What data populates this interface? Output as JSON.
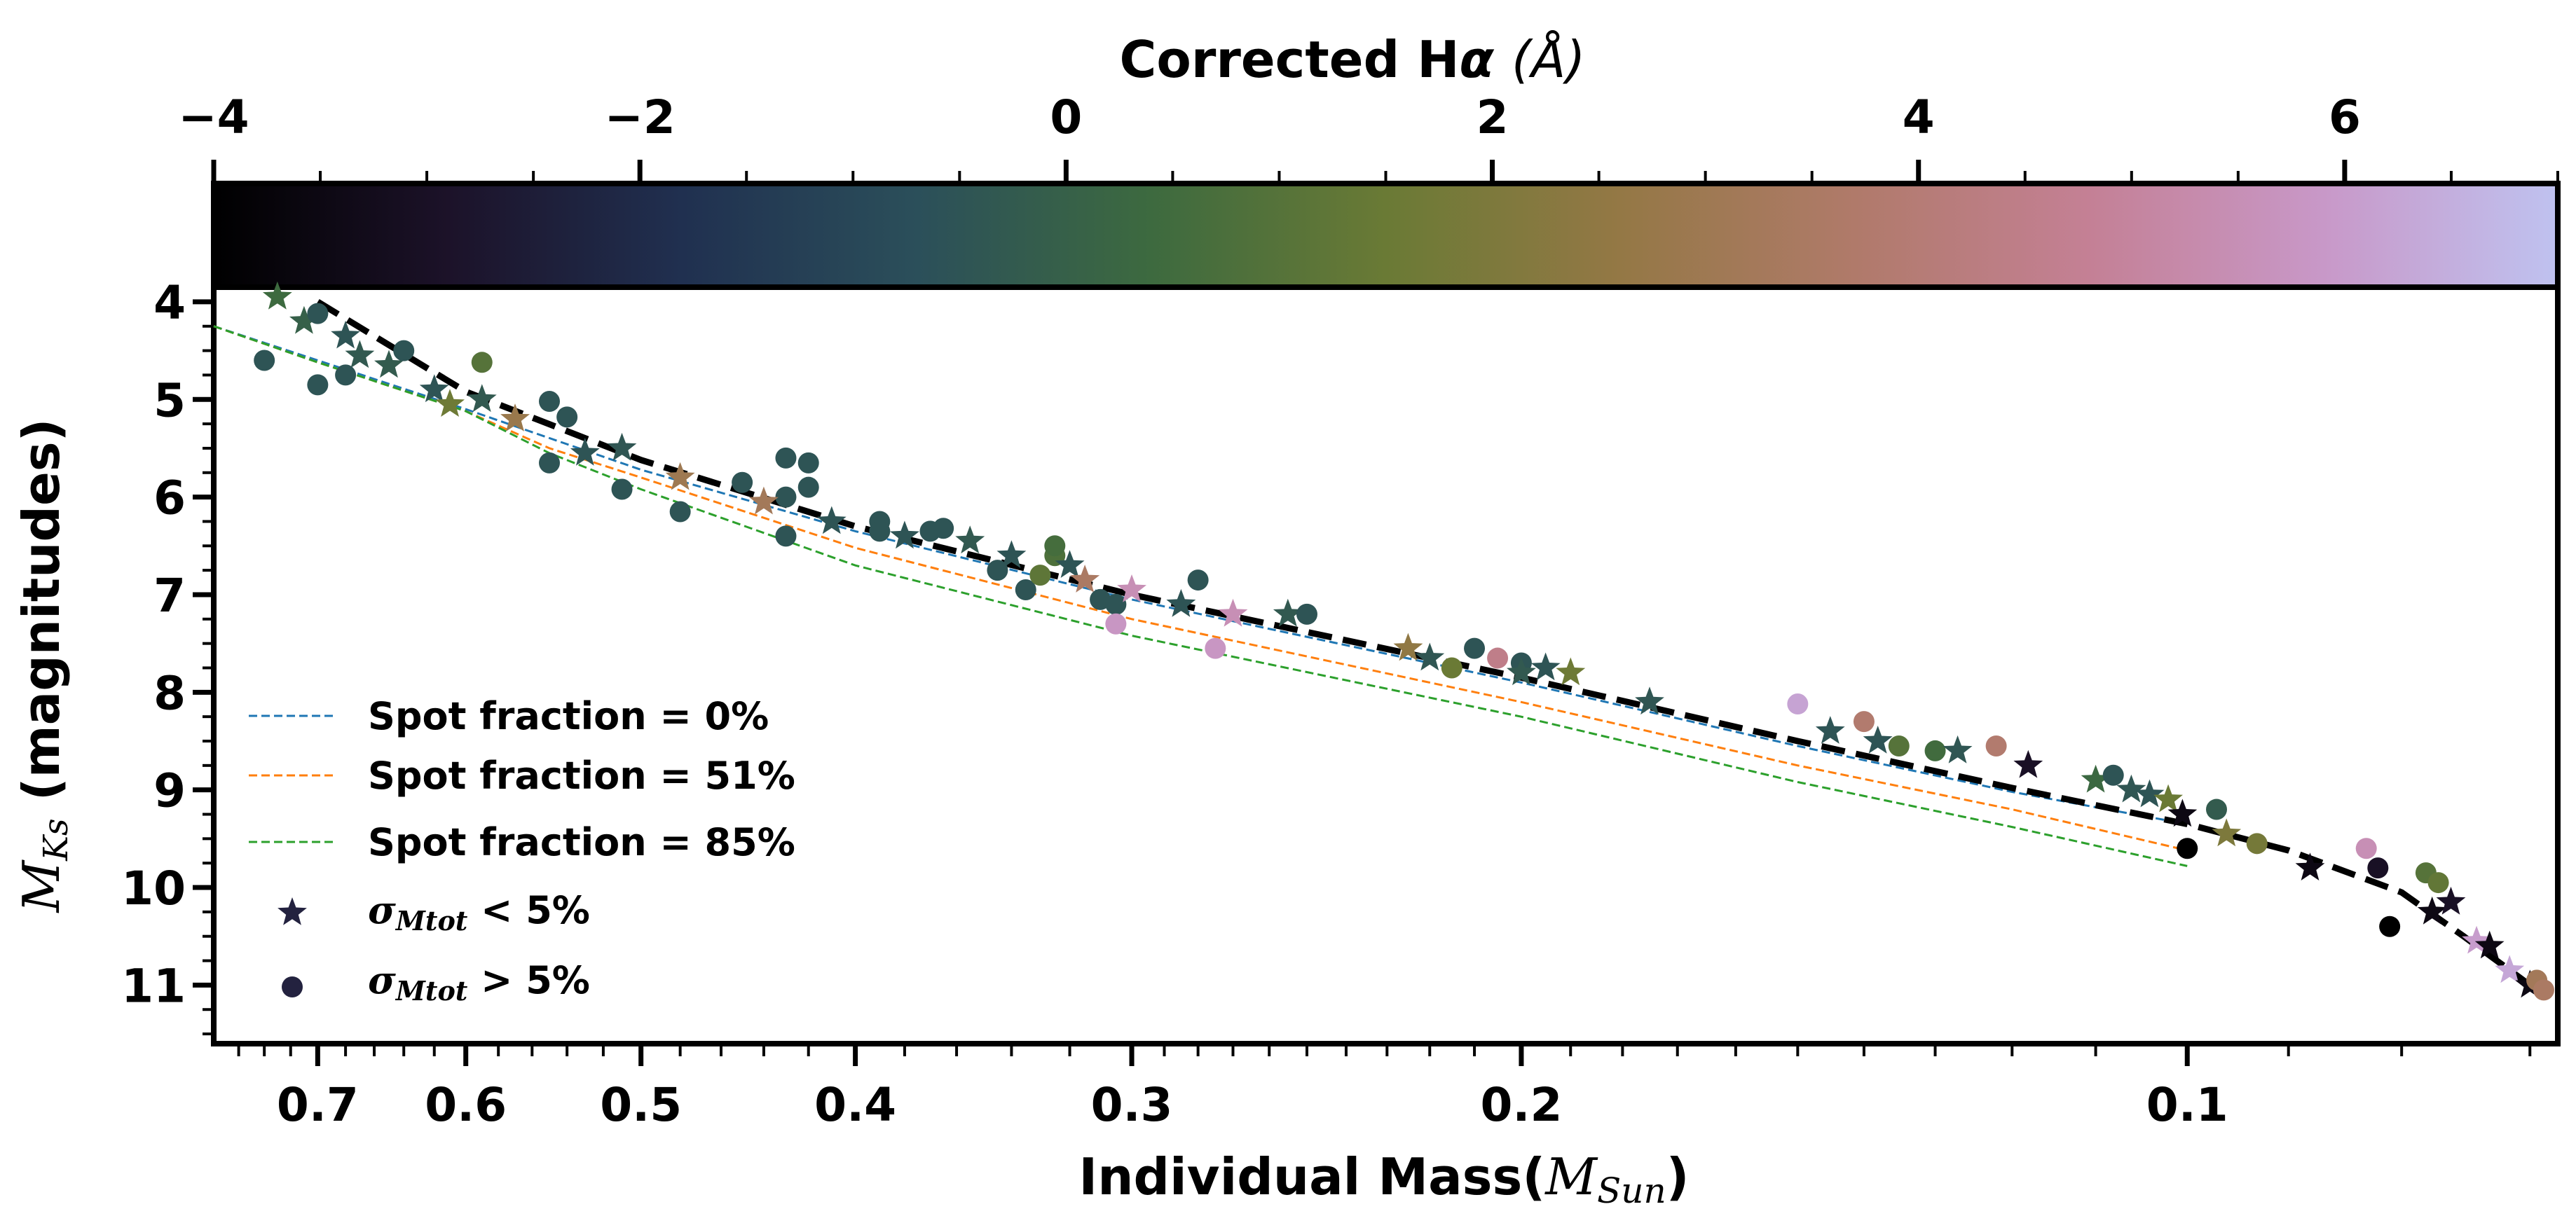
{
  "colorbar": {
    "label_main": "Corrected H",
    "label_greek": "α",
    "label_unit": "(Å)",
    "range": [
      -4,
      7
    ],
    "ticks": [
      -4,
      -2,
      0,
      2,
      4,
      6
    ],
    "tick_labels": [
      "−4",
      "−2",
      "0",
      "2",
      "4",
      "6"
    ],
    "colors": [
      "#000000",
      "#1c1229",
      "#203050",
      "#2b4f5a",
      "#3d6a3f",
      "#6a7a35",
      "#947845",
      "#b07a6a",
      "#c48095",
      "#c898c8",
      "#bfc2f0"
    ]
  },
  "legend": {
    "entries": [
      {
        "label": "Spot fraction = 0%",
        "color": "#1f77b4",
        "kind": "line"
      },
      {
        "label": "Spot fraction = 51%",
        "color": "#ff7f0e",
        "kind": "line"
      },
      {
        "label": "Spot fraction = 85%",
        "color": "#2ca02c",
        "kind": "line"
      },
      {
        "label_prefix": "σ",
        "label_sub": "Mtot",
        "label_suffix": " < 5%",
        "color": "#23223f",
        "kind": "star"
      },
      {
        "label_prefix": "σ",
        "label_sub": "Mtot",
        "label_suffix": " > 5%",
        "color": "#23223f",
        "kind": "circle"
      }
    ]
  },
  "chart_data": {
    "type": "scatter",
    "xlabel_main": "Individual Mass(",
    "xlabel_unit": "M",
    "xlabel_sub": "Sun",
    "xlabel_close": ")",
    "ylabel_sym": "M",
    "ylabel_sub": "Ks",
    "ylabel_text": " (magnitudes)",
    "x_scale": "log",
    "x_inverted": true,
    "xlim": [
      0.78,
      0.068
    ],
    "ylim": [
      11.6,
      3.85
    ],
    "x_ticks": [
      0.7,
      0.6,
      0.5,
      0.4,
      0.3,
      0.2,
      0.1
    ],
    "x_tick_labels": [
      "0.7",
      "0.6",
      "0.5",
      "0.4",
      "0.3",
      "0.2",
      "0.1"
    ],
    "y_ticks": [
      4,
      5,
      6,
      7,
      8,
      9,
      10,
      11
    ],
    "y_tick_labels": [
      "4",
      "5",
      "6",
      "7",
      "8",
      "9",
      "10",
      "11"
    ],
    "fit_line": {
      "x": [
        0.7,
        0.6,
        0.5,
        0.4,
        0.3,
        0.2,
        0.15,
        0.12,
        0.1,
        0.09,
        0.08,
        0.075,
        0.07
      ],
      "y": [
        4.0,
        4.92,
        5.62,
        6.3,
        7.0,
        7.85,
        8.5,
        8.98,
        9.35,
        9.62,
        10.05,
        10.5,
        11.0
      ]
    },
    "series": [
      {
        "name": "Spot fraction = 0%",
        "color": "#1f77b4",
        "x": [
          0.78,
          0.7,
          0.6,
          0.5,
          0.4,
          0.3,
          0.2,
          0.15,
          0.12,
          0.1
        ],
        "y": [
          4.25,
          4.6,
          5.1,
          5.72,
          6.35,
          7.05,
          7.9,
          8.55,
          9.02,
          9.35
        ]
      },
      {
        "name": "Spot fraction = 51%",
        "color": "#ff7f0e",
        "x": [
          0.78,
          0.7,
          0.6,
          0.55,
          0.5,
          0.4,
          0.3,
          0.2,
          0.15,
          0.12,
          0.1
        ],
        "y": [
          4.25,
          4.62,
          5.12,
          5.5,
          5.8,
          6.52,
          7.25,
          8.1,
          8.75,
          9.2,
          9.62
        ]
      },
      {
        "name": "Spot fraction = 85%",
        "color": "#2ca02c",
        "x": [
          0.78,
          0.7,
          0.6,
          0.55,
          0.5,
          0.4,
          0.3,
          0.2,
          0.15,
          0.12,
          0.1
        ],
        "y": [
          4.25,
          4.62,
          5.12,
          5.55,
          5.92,
          6.7,
          7.42,
          8.25,
          8.92,
          9.38,
          9.78
        ]
      }
    ],
    "points": [
      {
        "x": 0.73,
        "y": 3.95,
        "s": "star",
        "c": 0.4
      },
      {
        "x": 0.71,
        "y": 4.2,
        "s": "star",
        "c": 0.0
      },
      {
        "x": 0.7,
        "y": 4.12,
        "s": "circle",
        "c": -0.5
      },
      {
        "x": 0.68,
        "y": 4.35,
        "s": "star",
        "c": -0.5
      },
      {
        "x": 0.67,
        "y": 4.55,
        "s": "star",
        "c": -0.3
      },
      {
        "x": 0.65,
        "y": 4.65,
        "s": "star",
        "c": -0.2
      },
      {
        "x": 0.74,
        "y": 4.6,
        "s": "circle",
        "c": -0.5
      },
      {
        "x": 0.7,
        "y": 4.85,
        "s": "circle",
        "c": -0.5
      },
      {
        "x": 0.68,
        "y": 4.75,
        "s": "circle",
        "c": -0.5
      },
      {
        "x": 0.64,
        "y": 4.5,
        "s": "circle",
        "c": -0.5
      },
      {
        "x": 0.62,
        "y": 4.9,
        "s": "star",
        "c": -0.5
      },
      {
        "x": 0.61,
        "y": 5.05,
        "s": "star",
        "c": 1.6
      },
      {
        "x": 0.59,
        "y": 5.0,
        "s": "star",
        "c": -0.3
      },
      {
        "x": 0.59,
        "y": 4.62,
        "s": "circle",
        "c": 1.0
      },
      {
        "x": 0.57,
        "y": 5.2,
        "s": "star",
        "c": 2.8
      },
      {
        "x": 0.55,
        "y": 5.02,
        "s": "circle",
        "c": -0.5
      },
      {
        "x": 0.54,
        "y": 5.18,
        "s": "circle",
        "c": -0.5
      },
      {
        "x": 0.55,
        "y": 5.65,
        "s": "circle",
        "c": -0.5
      },
      {
        "x": 0.53,
        "y": 5.55,
        "s": "star",
        "c": -0.5
      },
      {
        "x": 0.51,
        "y": 5.5,
        "s": "star",
        "c": -0.4
      },
      {
        "x": 0.51,
        "y": 5.92,
        "s": "circle",
        "c": -0.5
      },
      {
        "x": 0.48,
        "y": 5.8,
        "s": "star",
        "c": 3.0
      },
      {
        "x": 0.48,
        "y": 6.15,
        "s": "circle",
        "c": -0.5
      },
      {
        "x": 0.45,
        "y": 5.85,
        "s": "circle",
        "c": -0.5
      },
      {
        "x": 0.43,
        "y": 6.0,
        "s": "circle",
        "c": -0.5
      },
      {
        "x": 0.43,
        "y": 5.6,
        "s": "circle",
        "c": -0.5
      },
      {
        "x": 0.42,
        "y": 5.65,
        "s": "circle",
        "c": -0.5
      },
      {
        "x": 0.42,
        "y": 5.9,
        "s": "circle",
        "c": -0.5
      },
      {
        "x": 0.43,
        "y": 6.4,
        "s": "circle",
        "c": -0.5
      },
      {
        "x": 0.44,
        "y": 6.05,
        "s": "star",
        "c": 3.2
      },
      {
        "x": 0.41,
        "y": 6.25,
        "s": "star",
        "c": -0.5
      },
      {
        "x": 0.39,
        "y": 6.25,
        "s": "circle",
        "c": -0.5
      },
      {
        "x": 0.39,
        "y": 6.35,
        "s": "circle",
        "c": -0.5
      },
      {
        "x": 0.38,
        "y": 6.4,
        "s": "star",
        "c": -0.5
      },
      {
        "x": 0.37,
        "y": 6.35,
        "s": "circle",
        "c": -0.5
      },
      {
        "x": 0.365,
        "y": 6.32,
        "s": "circle",
        "c": -0.5
      },
      {
        "x": 0.355,
        "y": 6.45,
        "s": "star",
        "c": -0.3
      },
      {
        "x": 0.345,
        "y": 6.75,
        "s": "circle",
        "c": -0.5
      },
      {
        "x": 0.34,
        "y": 6.6,
        "s": "star",
        "c": -0.5
      },
      {
        "x": 0.335,
        "y": 6.95,
        "s": "circle",
        "c": -0.5
      },
      {
        "x": 0.33,
        "y": 6.8,
        "s": "circle",
        "c": 1.2
      },
      {
        "x": 0.325,
        "y": 6.6,
        "s": "circle",
        "c": 0.8
      },
      {
        "x": 0.325,
        "y": 6.5,
        "s": "circle",
        "c": 0.6
      },
      {
        "x": 0.32,
        "y": 6.7,
        "s": "star",
        "c": -0.5
      },
      {
        "x": 0.315,
        "y": 6.85,
        "s": "star",
        "c": 3.5
      },
      {
        "x": 0.31,
        "y": 7.05,
        "s": "circle",
        "c": -0.5
      },
      {
        "x": 0.305,
        "y": 7.1,
        "s": "circle",
        "c": -0.5
      },
      {
        "x": 0.305,
        "y": 7.3,
        "s": "circle",
        "c": 5.8
      },
      {
        "x": 0.3,
        "y": 6.95,
        "s": "star",
        "c": 5.5
      },
      {
        "x": 0.285,
        "y": 7.1,
        "s": "star",
        "c": -0.5
      },
      {
        "x": 0.28,
        "y": 6.85,
        "s": "circle",
        "c": -0.5
      },
      {
        "x": 0.275,
        "y": 7.55,
        "s": "circle",
        "c": 5.8
      },
      {
        "x": 0.27,
        "y": 7.2,
        "s": "star",
        "c": 5.5
      },
      {
        "x": 0.255,
        "y": 7.2,
        "s": "star",
        "c": -0.3
      },
      {
        "x": 0.25,
        "y": 7.2,
        "s": "circle",
        "c": -0.5
      },
      {
        "x": 0.225,
        "y": 7.55,
        "s": "star",
        "c": 2.5
      },
      {
        "x": 0.22,
        "y": 7.65,
        "s": "star",
        "c": -0.4
      },
      {
        "x": 0.215,
        "y": 7.75,
        "s": "circle",
        "c": 1.5
      },
      {
        "x": 0.21,
        "y": 7.55,
        "s": "circle",
        "c": -0.5
      },
      {
        "x": 0.205,
        "y": 7.65,
        "s": "circle",
        "c": 4.5
      },
      {
        "x": 0.2,
        "y": 7.7,
        "s": "circle",
        "c": -0.5
      },
      {
        "x": 0.2,
        "y": 7.8,
        "s": "star",
        "c": -0.3
      },
      {
        "x": 0.195,
        "y": 7.75,
        "s": "star",
        "c": -0.5
      },
      {
        "x": 0.19,
        "y": 7.8,
        "s": "star",
        "c": 1.6
      },
      {
        "x": 0.175,
        "y": 8.1,
        "s": "star",
        "c": -0.4
      },
      {
        "x": 0.15,
        "y": 8.12,
        "s": "circle",
        "c": 6.2
      },
      {
        "x": 0.145,
        "y": 8.4,
        "s": "star",
        "c": -0.5
      },
      {
        "x": 0.14,
        "y": 8.3,
        "s": "circle",
        "c": 3.8
      },
      {
        "x": 0.138,
        "y": 8.5,
        "s": "star",
        "c": -0.5
      },
      {
        "x": 0.135,
        "y": 8.55,
        "s": "circle",
        "c": 1.0
      },
      {
        "x": 0.13,
        "y": 8.6,
        "s": "circle",
        "c": 0.5
      },
      {
        "x": 0.127,
        "y": 8.6,
        "s": "star",
        "c": -0.4
      },
      {
        "x": 0.122,
        "y": 8.55,
        "s": "circle",
        "c": 3.8
      },
      {
        "x": 0.118,
        "y": 8.75,
        "s": "star",
        "c": -3.0
      },
      {
        "x": 0.11,
        "y": 8.9,
        "s": "star",
        "c": 0.3
      },
      {
        "x": 0.108,
        "y": 8.85,
        "s": "circle",
        "c": -0.5
      },
      {
        "x": 0.106,
        "y": 9.0,
        "s": "star",
        "c": -0.4
      },
      {
        "x": 0.104,
        "y": 9.05,
        "s": "star",
        "c": -0.5
      },
      {
        "x": 0.102,
        "y": 9.1,
        "s": "star",
        "c": 1.5
      },
      {
        "x": 0.1005,
        "y": 9.25,
        "s": "star",
        "c": -3.5
      },
      {
        "x": 0.1,
        "y": 9.6,
        "s": "circle",
        "c": -4.0
      },
      {
        "x": 0.097,
        "y": 9.2,
        "s": "circle",
        "c": -0.2
      },
      {
        "x": 0.096,
        "y": 9.45,
        "s": "star",
        "c": 2.0
      },
      {
        "x": 0.093,
        "y": 9.55,
        "s": "circle",
        "c": 1.8
      },
      {
        "x": 0.088,
        "y": 9.8,
        "s": "star",
        "c": -3.5
      },
      {
        "x": 0.083,
        "y": 9.6,
        "s": "circle",
        "c": 5.5
      },
      {
        "x": 0.082,
        "y": 9.8,
        "s": "circle",
        "c": -3.0
      },
      {
        "x": 0.081,
        "y": 10.4,
        "s": "circle",
        "c": -4.0
      },
      {
        "x": 0.078,
        "y": 9.85,
        "s": "circle",
        "c": 1.0
      },
      {
        "x": 0.077,
        "y": 9.95,
        "s": "circle",
        "c": 1.3
      },
      {
        "x": 0.0775,
        "y": 10.25,
        "s": "star",
        "c": -3.5
      },
      {
        "x": 0.076,
        "y": 10.15,
        "s": "star",
        "c": -3.0
      },
      {
        "x": 0.074,
        "y": 10.55,
        "s": "star",
        "c": 6.0
      },
      {
        "x": 0.073,
        "y": 10.6,
        "s": "star",
        "c": -3.5
      },
      {
        "x": 0.0715,
        "y": 10.85,
        "s": "star",
        "c": 6.3
      },
      {
        "x": 0.07,
        "y": 11.0,
        "s": "star",
        "c": -3.5
      },
      {
        "x": 0.0695,
        "y": 10.95,
        "s": "circle",
        "c": 3.2
      },
      {
        "x": 0.069,
        "y": 11.05,
        "s": "circle",
        "c": 3.5
      }
    ]
  }
}
